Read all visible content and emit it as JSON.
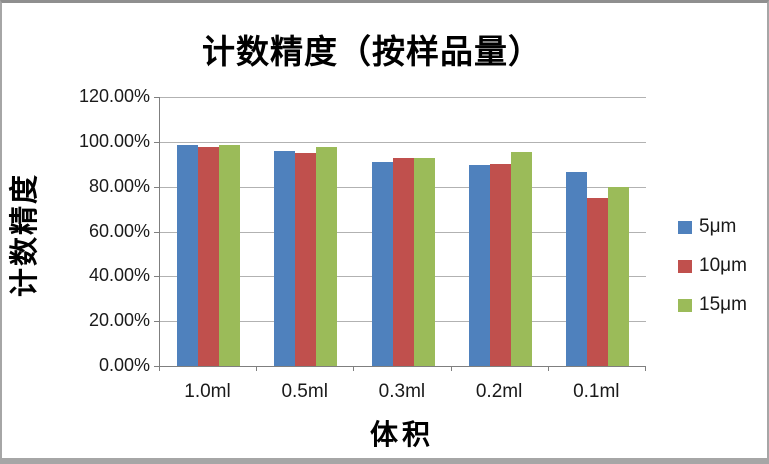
{
  "chart_data": {
    "type": "bar",
    "title": "计数精度（按样品量）",
    "xlabel": "体积",
    "ylabel": "计数精度",
    "categories": [
      "1.0ml",
      "0.5ml",
      "0.3ml",
      "0.2ml",
      "0.1ml"
    ],
    "series": [
      {
        "name": "5μm",
        "color": "#4F81BD",
        "values": [
          98.5,
          96.0,
          91.0,
          89.5,
          86.5
        ]
      },
      {
        "name": "10μm",
        "color": "#C0504D",
        "values": [
          97.5,
          95.0,
          93.0,
          90.0,
          75.0
        ]
      },
      {
        "name": "15μm",
        "color": "#9BBB59",
        "values": [
          98.5,
          97.5,
          93.0,
          95.5,
          80.0
        ]
      }
    ],
    "ylim": [
      0,
      120
    ],
    "ytick_step": 20,
    "ytick_labels": [
      "0.00%",
      "20.00%",
      "40.00%",
      "60.00%",
      "80.00%",
      "100.00%",
      "120.00%"
    ],
    "grid": true,
    "legend_position": "right"
  },
  "style": {
    "gridline_color": "#b2b2b2",
    "axis_color": "#7f7f7f",
    "text_color": "#1a1a1a",
    "title_color": "#000000",
    "frame_border_color": "#a6a6a6"
  }
}
